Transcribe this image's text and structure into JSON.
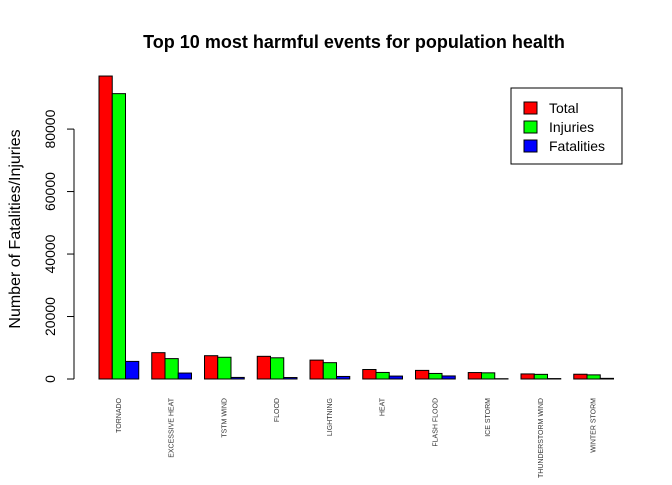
{
  "chart_data": {
    "type": "bar",
    "title": "Top 10 most harmful events for population health",
    "xlabel": "",
    "ylabel": "Number of Fatalities/Injuries",
    "ylim": [
      0,
      97000
    ],
    "yticks": [
      0,
      20000,
      40000,
      60000,
      80000
    ],
    "grid": false,
    "legend_position": "top-right",
    "categories": [
      "TORNADO",
      "EXCESSIVE HEAT",
      "TSTM WIND",
      "FLOOD",
      "LIGHTNING",
      "HEAT",
      "FLASH FLOOD",
      "ICE STORM",
      "THUNDERSTORM WIND",
      "WINTER STORM"
    ],
    "series": [
      {
        "name": "Total",
        "color": "#ff0000",
        "values": [
          96979,
          8428,
          7461,
          7259,
          6046,
          3037,
          2755,
          2064,
          1621,
          1527
        ]
      },
      {
        "name": "Injuries",
        "color": "#00ff00",
        "values": [
          91346,
          6525,
          6957,
          6789,
          5230,
          2100,
          1777,
          1975,
          1488,
          1321
        ]
      },
      {
        "name": "Fatalities",
        "color": "#0000ff",
        "values": [
          5633,
          1903,
          504,
          470,
          816,
          937,
          978,
          89,
          133,
          206
        ]
      }
    ]
  }
}
